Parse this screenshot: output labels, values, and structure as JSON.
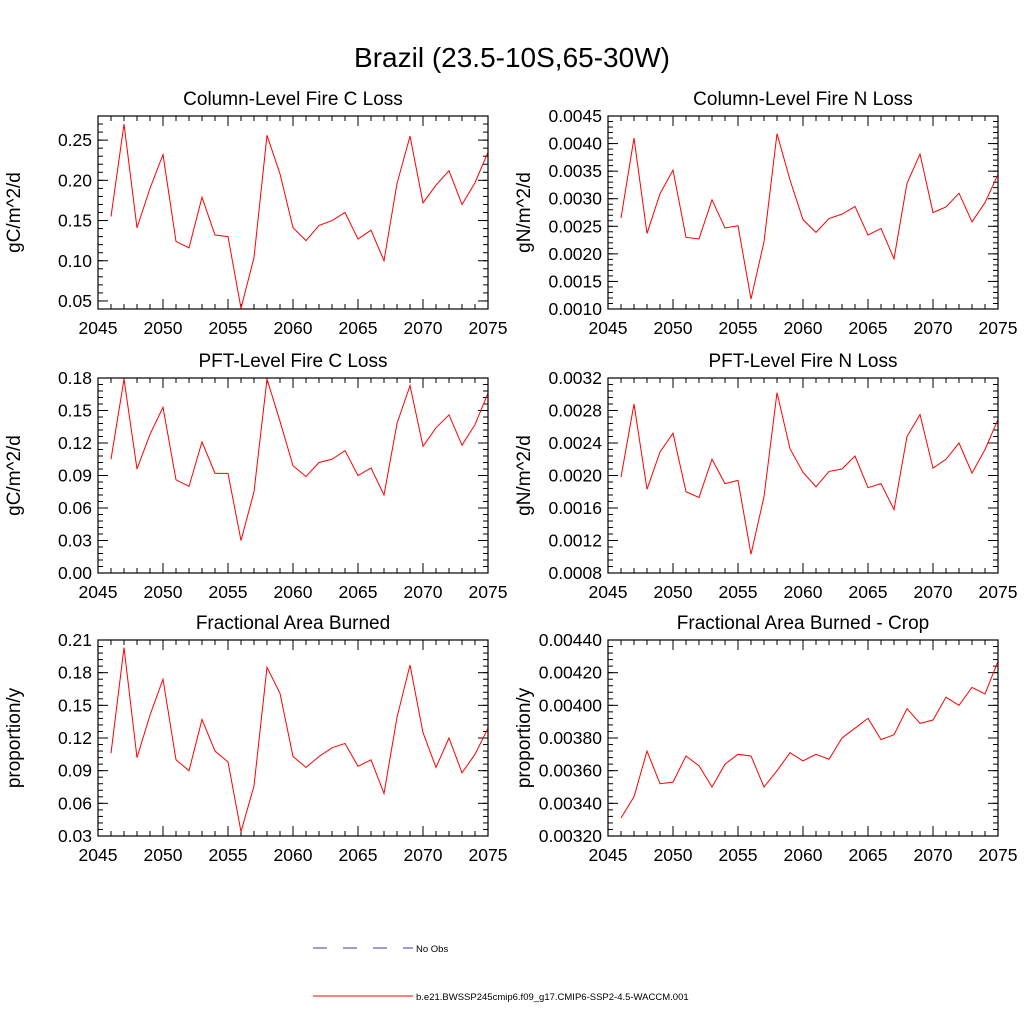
{
  "figure": {
    "title": "Brazil (23.5-10S,65-30W)",
    "line_color": "#ff0000",
    "obs_color": "#3a3ab8"
  },
  "legend": {
    "entries": [
      {
        "label": "No Obs",
        "style": "dashed",
        "color": "#3a3ab8"
      },
      {
        "label": "b.e21.BWSSP245cmip6.f09_g17.CMIP6-SSP2-4.5-WACCM.001",
        "style": "solid",
        "color": "#ff0000"
      }
    ]
  },
  "chart_data": [
    {
      "type": "line",
      "title": "Column-Level Fire C Loss",
      "ylabel": "gC/m^2/d",
      "xlabel": "",
      "xlim": [
        2045,
        2075
      ],
      "ylim": [
        0.04,
        0.28
      ],
      "xticks": [
        2045,
        2050,
        2055,
        2060,
        2065,
        2070,
        2075
      ],
      "yticks": [
        0.05,
        0.1,
        0.15,
        0.2,
        0.25
      ],
      "ytick_labels": [
        "0.05",
        "0.10",
        "0.15",
        "0.20",
        "0.25"
      ],
      "series": [
        {
          "name": "b.e21.BWSSP245cmip6.f09_g17.CMIP6-SSP2-4.5-WACCM.001",
          "x": [
            2046,
            2047,
            2048,
            2049,
            2050,
            2051,
            2052,
            2053,
            2054,
            2055,
            2056,
            2057,
            2058,
            2059,
            2060,
            2061,
            2062,
            2063,
            2064,
            2065,
            2066,
            2067,
            2068,
            2069,
            2070,
            2071,
            2072,
            2073,
            2074,
            2075
          ],
          "values": [
            0.155,
            0.27,
            0.141,
            0.19,
            0.232,
            0.124,
            0.116,
            0.179,
            0.132,
            0.13,
            0.041,
            0.104,
            0.256,
            0.208,
            0.141,
            0.125,
            0.144,
            0.15,
            0.16,
            0.127,
            0.138,
            0.1,
            0.196,
            0.255,
            0.172,
            0.194,
            0.212,
            0.17,
            0.197,
            0.235
          ]
        }
      ]
    },
    {
      "type": "line",
      "title": "Column-Level Fire N Loss",
      "ylabel": "gN/m^2/d",
      "xlabel": "",
      "xlim": [
        2045,
        2075
      ],
      "ylim": [
        0.001,
        0.0045
      ],
      "xticks": [
        2045,
        2050,
        2055,
        2060,
        2065,
        2070,
        2075
      ],
      "yticks": [
        0.001,
        0.0015,
        0.002,
        0.0025,
        0.003,
        0.0035,
        0.004,
        0.0045
      ],
      "ytick_labels": [
        "0.0010",
        "0.0015",
        "0.0020",
        "0.0025",
        "0.0030",
        "0.0035",
        "0.0040",
        "0.0045"
      ],
      "series": [
        {
          "name": "b.e21.BWSSP245cmip6.f09_g17.CMIP6-SSP2-4.5-WACCM.001",
          "x": [
            2046,
            2047,
            2048,
            2049,
            2050,
            2051,
            2052,
            2053,
            2054,
            2055,
            2056,
            2057,
            2058,
            2059,
            2060,
            2061,
            2062,
            2063,
            2064,
            2065,
            2066,
            2067,
            2068,
            2069,
            2070,
            2071,
            2072,
            2073,
            2074,
            2075
          ],
          "values": [
            0.00265,
            0.0041,
            0.00237,
            0.00309,
            0.00352,
            0.0023,
            0.00227,
            0.00298,
            0.00247,
            0.00251,
            0.00118,
            0.00222,
            0.00418,
            0.00334,
            0.00262,
            0.00239,
            0.00264,
            0.00272,
            0.00286,
            0.00234,
            0.00246,
            0.00191,
            0.00328,
            0.00381,
            0.00275,
            0.00285,
            0.0031,
            0.00258,
            0.00293,
            0.00344
          ]
        }
      ]
    },
    {
      "type": "line",
      "title": "PFT-Level Fire C Loss",
      "ylabel": "gC/m^2/d",
      "xlabel": "",
      "xlim": [
        2045,
        2075
      ],
      "ylim": [
        0.0,
        0.18
      ],
      "xticks": [
        2045,
        2050,
        2055,
        2060,
        2065,
        2070,
        2075
      ],
      "yticks": [
        0.0,
        0.03,
        0.06,
        0.09,
        0.12,
        0.15,
        0.18
      ],
      "ytick_labels": [
        "0.00",
        "0.03",
        "0.06",
        "0.09",
        "0.12",
        "0.15",
        "0.18"
      ],
      "series": [
        {
          "name": "b.e21.BWSSP245cmip6.f09_g17.CMIP6-SSP2-4.5-WACCM.001",
          "x": [
            2046,
            2047,
            2048,
            2049,
            2050,
            2051,
            2052,
            2053,
            2054,
            2055,
            2056,
            2057,
            2058,
            2059,
            2060,
            2061,
            2062,
            2063,
            2064,
            2065,
            2066,
            2067,
            2068,
            2069,
            2070,
            2071,
            2072,
            2073,
            2074,
            2075
          ],
          "values": [
            0.105,
            0.179,
            0.096,
            0.128,
            0.153,
            0.086,
            0.08,
            0.121,
            0.092,
            0.092,
            0.03,
            0.075,
            0.179,
            0.14,
            0.099,
            0.089,
            0.102,
            0.105,
            0.113,
            0.09,
            0.097,
            0.072,
            0.138,
            0.173,
            0.117,
            0.134,
            0.146,
            0.118,
            0.137,
            0.166
          ]
        }
      ]
    },
    {
      "type": "line",
      "title": "PFT-Level Fire N Loss",
      "ylabel": "gN/m^2/d",
      "xlabel": "",
      "xlim": [
        2045,
        2075
      ],
      "ylim": [
        0.0008,
        0.0032
      ],
      "xticks": [
        2045,
        2050,
        2055,
        2060,
        2065,
        2070,
        2075
      ],
      "yticks": [
        0.0008,
        0.0012,
        0.0016,
        0.002,
        0.0024,
        0.0028,
        0.0032
      ],
      "ytick_labels": [
        "0.0008",
        "0.0012",
        "0.0016",
        "0.0020",
        "0.0024",
        "0.0028",
        "0.0032"
      ],
      "series": [
        {
          "name": "b.e21.BWSSP245cmip6.f09_g17.CMIP6-SSP2-4.5-WACCM.001",
          "x": [
            2046,
            2047,
            2048,
            2049,
            2050,
            2051,
            2052,
            2053,
            2054,
            2055,
            2056,
            2057,
            2058,
            2059,
            2060,
            2061,
            2062,
            2063,
            2064,
            2065,
            2066,
            2067,
            2068,
            2069,
            2070,
            2071,
            2072,
            2073,
            2074,
            2075
          ],
          "values": [
            0.00198,
            0.00288,
            0.00183,
            0.00229,
            0.00252,
            0.0018,
            0.00173,
            0.0022,
            0.0019,
            0.00194,
            0.00103,
            0.00174,
            0.00302,
            0.00233,
            0.00204,
            0.00186,
            0.00205,
            0.00208,
            0.00224,
            0.00185,
            0.0019,
            0.00158,
            0.00248,
            0.00275,
            0.00209,
            0.0022,
            0.0024,
            0.00203,
            0.00232,
            0.00269
          ]
        }
      ]
    },
    {
      "type": "line",
      "title": "Fractional Area Burned",
      "ylabel": "proportion/y",
      "xlabel": "",
      "xlim": [
        2045,
        2075
      ],
      "ylim": [
        0.03,
        0.21
      ],
      "xticks": [
        2045,
        2050,
        2055,
        2060,
        2065,
        2070,
        2075
      ],
      "yticks": [
        0.03,
        0.06,
        0.09,
        0.12,
        0.15,
        0.18,
        0.21
      ],
      "ytick_labels": [
        "0.03",
        "0.06",
        "0.09",
        "0.12",
        "0.15",
        "0.18",
        "0.21"
      ],
      "series": [
        {
          "name": "b.e21.BWSSP245cmip6.f09_g17.CMIP6-SSP2-4.5-WACCM.001",
          "x": [
            2046,
            2047,
            2048,
            2049,
            2050,
            2051,
            2052,
            2053,
            2054,
            2055,
            2056,
            2057,
            2058,
            2059,
            2060,
            2061,
            2062,
            2063,
            2064,
            2065,
            2066,
            2067,
            2068,
            2069,
            2070,
            2071,
            2072,
            2073,
            2074,
            2075
          ],
          "values": [
            0.106,
            0.203,
            0.102,
            0.141,
            0.174,
            0.1,
            0.09,
            0.137,
            0.108,
            0.098,
            0.034,
            0.076,
            0.185,
            0.161,
            0.103,
            0.093,
            0.103,
            0.111,
            0.115,
            0.094,
            0.1,
            0.069,
            0.139,
            0.187,
            0.125,
            0.093,
            0.12,
            0.088,
            0.105,
            0.129
          ]
        }
      ]
    },
    {
      "type": "line",
      "title": "Fractional Area Burned - Crop",
      "ylabel": "proportion/y",
      "xlabel": "",
      "xlim": [
        2045,
        2075
      ],
      "ylim": [
        0.0032,
        0.0044
      ],
      "xticks": [
        2045,
        2050,
        2055,
        2060,
        2065,
        2070,
        2075
      ],
      "yticks": [
        0.0032,
        0.0034,
        0.0036,
        0.0038,
        0.004,
        0.0042,
        0.0044
      ],
      "ytick_labels": [
        "0.00320",
        "0.00340",
        "0.00360",
        "0.00380",
        "0.00400",
        "0.00420",
        "0.00440"
      ],
      "series": [
        {
          "name": "b.e21.BWSSP245cmip6.f09_g17.CMIP6-SSP2-4.5-WACCM.001",
          "x": [
            2046,
            2047,
            2048,
            2049,
            2050,
            2051,
            2052,
            2053,
            2054,
            2055,
            2056,
            2057,
            2058,
            2059,
            2060,
            2061,
            2062,
            2063,
            2064,
            2065,
            2066,
            2067,
            2068,
            2069,
            2070,
            2071,
            2072,
            2073,
            2074,
            2075
          ],
          "values": [
            0.00331,
            0.00344,
            0.00372,
            0.00352,
            0.00353,
            0.00369,
            0.00363,
            0.0035,
            0.00364,
            0.0037,
            0.00369,
            0.0035,
            0.0036,
            0.00371,
            0.00366,
            0.0037,
            0.00367,
            0.0038,
            0.00386,
            0.00392,
            0.00379,
            0.00382,
            0.00398,
            0.00389,
            0.00391,
            0.00405,
            0.004,
            0.00411,
            0.00407,
            0.00427
          ]
        }
      ]
    }
  ]
}
